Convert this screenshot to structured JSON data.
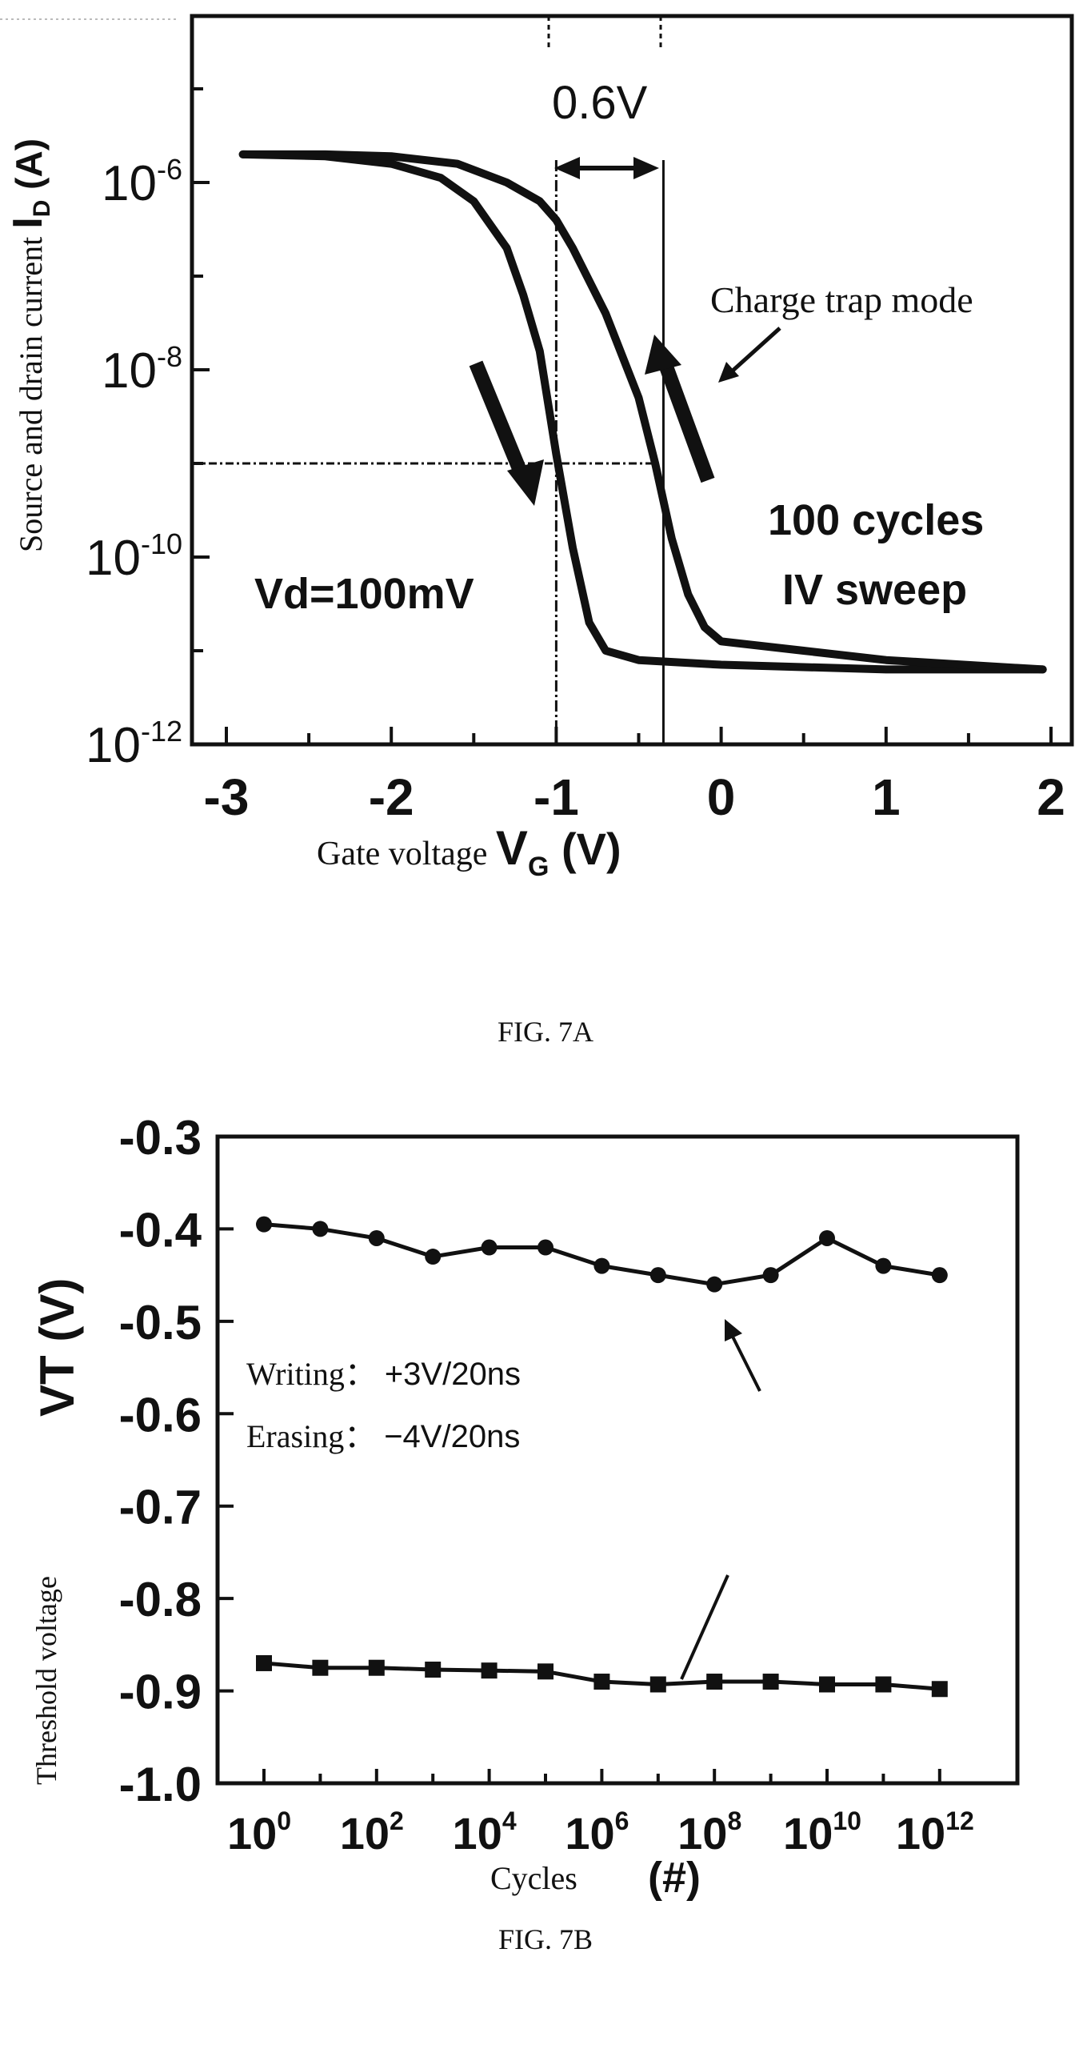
{
  "fig7a": {
    "caption": "FIG. 7A",
    "chart_data": {
      "type": "line",
      "xlabel_prefix": "Gate voltage ",
      "xlabel_symbol": "V",
      "xlabel_sub": "G",
      "xlabel_unit": " (V)",
      "ylabel_prefix": "Source and drain current ",
      "ylabel_symbol": "I",
      "ylabel_sub": "D",
      "ylabel_unit": " (A)",
      "xlim": [
        -3.2,
        2.2
      ],
      "ylim_log10": [
        -12,
        -5.3
      ],
      "y_scale": "log",
      "x_ticks": [
        -3,
        -2,
        -1,
        0,
        1,
        2
      ],
      "x_tick_labels": [
        "-3",
        "-2",
        "-1",
        "0",
        "1",
        "2"
      ],
      "y_ticks_exp": [
        -6,
        -8,
        -10,
        -12
      ],
      "y_tick_base": "10",
      "y_tick_exponents": [
        "-6",
        "-8",
        "-10",
        "-12"
      ],
      "series": [
        {
          "x": [
            -2.9,
            -2.4,
            -2.0,
            -1.7,
            -1.5,
            -1.3,
            -1.2,
            -1.1,
            -1.0,
            -0.9,
            -0.8,
            -0.7,
            -0.6,
            -0.5,
            0.0,
            1.0,
            1.95
          ],
          "log10_y": [
            -5.7,
            -5.72,
            -5.8,
            -5.95,
            -6.2,
            -6.7,
            -7.2,
            -7.8,
            -8.9,
            -9.9,
            -10.7,
            -11.0,
            -11.05,
            -11.1,
            -11.15,
            -11.2,
            -11.2
          ]
        },
        {
          "x": [
            -2.9,
            -2.4,
            -2.0,
            -1.6,
            -1.3,
            -1.1,
            -1.0,
            -0.9,
            -0.7,
            -0.5,
            -0.4,
            -0.3,
            -0.2,
            -0.1,
            0.0,
            0.5,
            1.0,
            1.95
          ],
          "log10_y": [
            -5.7,
            -5.7,
            -5.72,
            -5.8,
            -6.0,
            -6.2,
            -6.4,
            -6.7,
            -7.4,
            -8.3,
            -9.0,
            -9.8,
            -10.4,
            -10.75,
            -10.9,
            -11.0,
            -11.1,
            -11.2
          ]
        }
      ],
      "reference_lines": {
        "vertical_x": [
          -1.0,
          -0.35
        ],
        "horizontal_log10_y": -9.0
      },
      "annotations": {
        "shift": "0.6V",
        "mode": "Charge trap mode",
        "cycles_line1": "100 cycles",
        "cycles_line2": "IV sweep",
        "vd": "Vd=100mV"
      }
    }
  },
  "fig7b": {
    "caption": "FIG. 7B",
    "chart_data": {
      "type": "line",
      "xlabel": "Cycles",
      "xlabel_unit": "(#)",
      "ylabel_small": "Threshold voltage",
      "ylabel_big": "VT (V)",
      "x_scale": "log",
      "xlim_log10": [
        -0.5,
        12.8
      ],
      "ylim": [
        -1.0,
        -0.3
      ],
      "y_ticks": [
        -0.3,
        -0.4,
        -0.5,
        -0.6,
        -0.7,
        -0.8,
        -0.9,
        -1.0
      ],
      "y_tick_labels": [
        "-0.3",
        "-0.4",
        "-0.5",
        "-0.6",
        "-0.7",
        "-0.8",
        "-0.9",
        "-1.0"
      ],
      "x_ticks_exp": [
        0,
        2,
        4,
        6,
        8,
        10,
        12
      ],
      "x_tick_base": "10",
      "x_tick_exponents": [
        "0",
        "2",
        "4",
        "6",
        "8",
        "10",
        "12"
      ],
      "series": [
        {
          "marker": "circle",
          "x_log10": [
            0,
            1,
            2,
            3,
            4,
            5,
            6,
            7,
            8,
            9,
            10,
            11,
            12
          ],
          "y": [
            -0.395,
            -0.4,
            -0.41,
            -0.43,
            -0.42,
            -0.42,
            -0.44,
            -0.45,
            -0.46,
            -0.45,
            -0.41,
            -0.44,
            -0.45
          ]
        },
        {
          "marker": "square",
          "x_log10": [
            0,
            1,
            2,
            3,
            4,
            5,
            6,
            7,
            8,
            9,
            10,
            11,
            12
          ],
          "y": [
            -0.87,
            -0.875,
            -0.875,
            -0.877,
            -0.878,
            -0.879,
            -0.89,
            -0.893,
            -0.89,
            -0.89,
            -0.893,
            -0.893,
            -0.898
          ]
        }
      ],
      "annotations": {
        "writing_label": "Writing：",
        "writing_value": "+3V/20ns",
        "erasing_label": "Erasing：",
        "erasing_value": "−4V/20ns"
      }
    }
  }
}
